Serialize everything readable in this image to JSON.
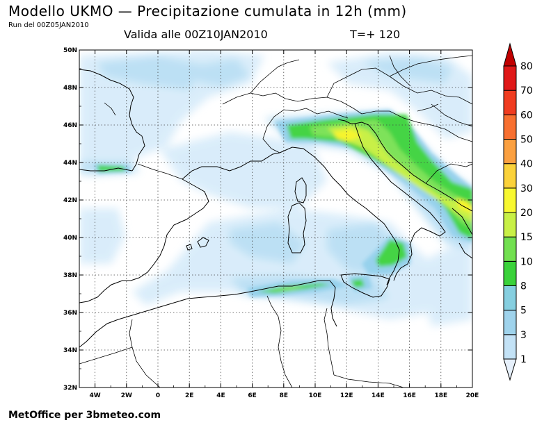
{
  "header": {
    "title": "Modello UKMO — Precipitazione cumulata in 12h (mm)",
    "run": "Run del 00Z05JAN2010",
    "valid": "Valida alle 00Z10JAN2010",
    "timestep": "T=+ 120"
  },
  "footer": {
    "credit": "MetOffice per 3bmeteo.com"
  },
  "map": {
    "lon_range": [
      -5,
      20
    ],
    "lat_range": [
      32,
      50
    ],
    "lon_ticks": [
      "4W",
      "2W",
      "0",
      "2E",
      "4E",
      "6E",
      "8E",
      "10E",
      "12E",
      "14E",
      "16E",
      "18E",
      "20E"
    ],
    "lat_ticks": [
      "50N",
      "48N",
      "46N",
      "44N",
      "42N",
      "40N",
      "38N",
      "36N",
      "34N",
      "32N"
    ],
    "grid": "dotted",
    "background_color": "#ffffff"
  },
  "colorbar": {
    "levels": [
      "1",
      "3",
      "5",
      "8",
      "10",
      "15",
      "20",
      "30",
      "40",
      "50",
      "60",
      "70",
      "80"
    ],
    "colors": [
      "#e6f0fb",
      "#c3e2f6",
      "#9fd3ec",
      "#86cfe0",
      "#3ad23a",
      "#72e050",
      "#c8f046",
      "#f8f830",
      "#fbd23a",
      "#fba040",
      "#f87030",
      "#f03c20",
      "#e01818",
      "#c00000"
    ]
  }
}
